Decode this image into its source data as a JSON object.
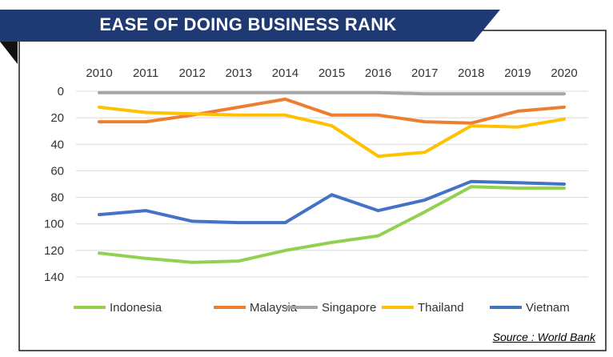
{
  "header": {
    "title": "EASE OF DOING BUSINESS RANK",
    "banner_color": "#1F3A73"
  },
  "source": "Source : World Bank",
  "chart_data": {
    "type": "line",
    "title": "EASE OF DOING BUSINESS RANK",
    "x": [
      "2010",
      "2011",
      "2012",
      "2013",
      "2014",
      "2015",
      "2016",
      "2017",
      "2018",
      "2019",
      "2020"
    ],
    "xaxis_position": "top",
    "ylim": [
      0,
      140
    ],
    "y_reversed": true,
    "yticks": [
      0,
      20,
      40,
      60,
      80,
      100,
      120,
      140
    ],
    "grid": true,
    "legend_position": "bottom",
    "series": [
      {
        "name": "Indonesia",
        "color": "#92D050",
        "values": [
          122,
          126,
          129,
          128,
          120,
          114,
          109,
          91,
          72,
          73,
          73
        ]
      },
      {
        "name": "Malaysia",
        "color": "#ED7D31",
        "values": [
          23,
          23,
          18,
          12,
          6,
          18,
          18,
          23,
          24,
          15,
          12
        ]
      },
      {
        "name": "Singapore",
        "color": "#A5A5A5",
        "values": [
          1,
          1,
          1,
          1,
          1,
          1,
          1,
          2,
          2,
          2,
          2
        ]
      },
      {
        "name": "Thailand",
        "color": "#FFC000",
        "values": [
          12,
          16,
          17,
          18,
          18,
          26,
          49,
          46,
          26,
          27,
          21
        ]
      },
      {
        "name": "Vietnam",
        "color": "#4472C4",
        "values": [
          93,
          90,
          98,
          99,
          99,
          78,
          90,
          82,
          68,
          69,
          70
        ]
      }
    ]
  }
}
